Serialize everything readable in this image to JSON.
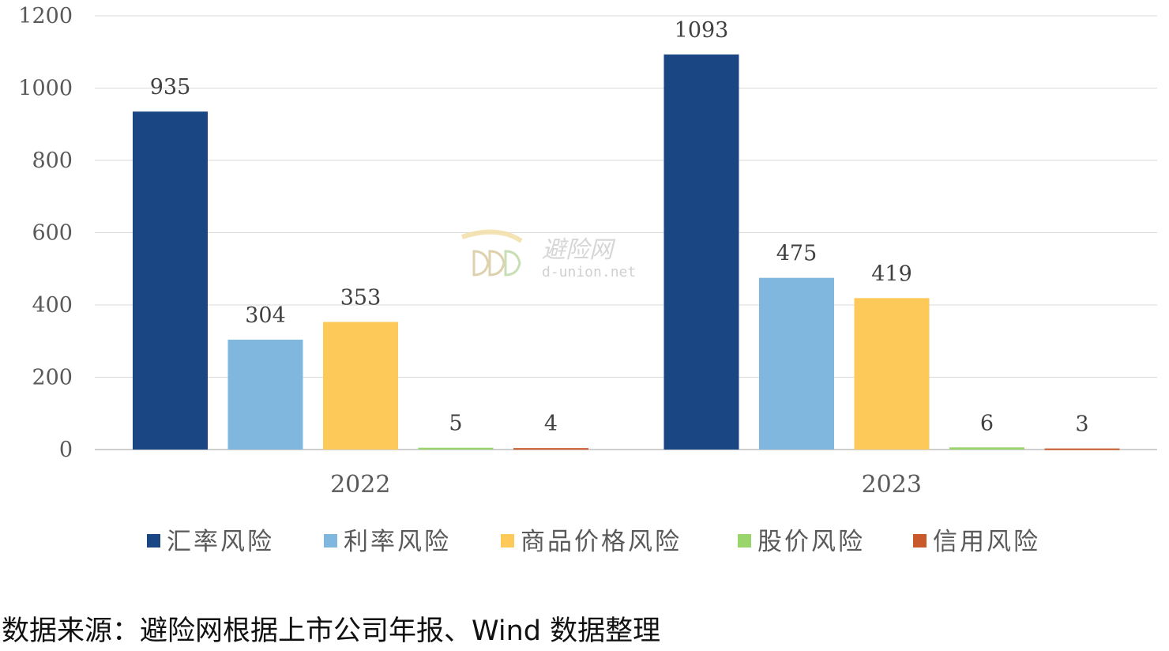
{
  "chart_data": {
    "type": "bar",
    "categories": [
      "2022",
      "2023"
    ],
    "series": [
      {
        "name": "汇率风险",
        "color": "#1a4684",
        "values": [
          935,
          1093
        ]
      },
      {
        "name": "利率风险",
        "color": "#7fb7de",
        "values": [
          304,
          475
        ]
      },
      {
        "name": "商品价格风险",
        "color": "#fdca5a",
        "values": [
          353,
          419
        ]
      },
      {
        "name": "股价风险",
        "color": "#9ad56c",
        "values": [
          5,
          6
        ]
      },
      {
        "name": "信用风险",
        "color": "#c9582a",
        "values": [
          4,
          3
        ]
      }
    ],
    "ylim": [
      0,
      1200
    ],
    "yticks": [
      0,
      200,
      400,
      600,
      800,
      1000,
      1200
    ],
    "grid": true,
    "legend_position": "bottom",
    "title": "",
    "xlabel": "",
    "ylabel": ""
  },
  "watermark": {
    "name": "避险网",
    "url": "d-union.net"
  },
  "source_note": "数据来源：避险网根据上市公司年报、Wind 数据整理"
}
